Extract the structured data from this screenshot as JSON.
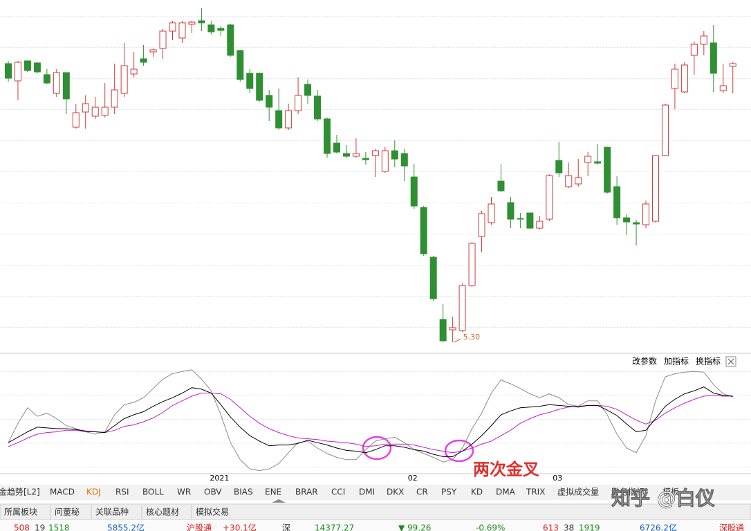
{
  "chart_data": [
    {
      "type": "candlestick",
      "open": [
        7.315,
        7.19,
        7.335,
        7.32,
        7.235,
        7.1,
        7.25,
        6.855,
        6.965,
        6.935,
        6.94,
        7.0,
        7.1,
        7.24,
        7.35,
        7.4,
        7.425,
        7.55,
        7.5,
        7.6,
        7.625,
        7.595,
        7.57,
        7.595,
        7.41,
        7.245,
        7.245,
        7.085,
        6.975,
        6.85,
        6.975,
        7.165,
        7.08,
        6.915,
        6.74,
        6.665,
        6.645,
        6.63,
        6.65,
        6.535,
        6.685,
        6.665,
        6.495,
        6.275,
        5.915,
        5.465,
        5.39,
        5.385,
        5.71,
        6.065,
        6.165,
        6.465,
        6.31,
        6.195,
        6.235,
        6.125,
        6.19,
        6.615,
        6.425,
        6.445,
        6.6,
        6.605,
        6.71,
        6.425,
        6.2,
        6.165,
        6.15,
        6.175,
        6.65,
        7.135,
        7.11,
        7.375,
        7.455,
        7.465,
        7.12,
        7.295
      ],
      "high": [
        7.335,
        7.335,
        7.335,
        7.325,
        7.275,
        7.275,
        7.25,
        7.025,
        7.085,
        7.075,
        7.175,
        7.315,
        7.465,
        7.4,
        7.45,
        7.425,
        7.565,
        7.625,
        7.625,
        7.625,
        7.715,
        7.625,
        7.585,
        7.6,
        7.415,
        7.275,
        7.25,
        7.125,
        7.135,
        7.025,
        7.215,
        7.2,
        7.125,
        6.925,
        6.8,
        6.725,
        6.775,
        6.675,
        6.7,
        6.715,
        6.76,
        6.7,
        6.59,
        6.285,
        5.925,
        5.575,
        5.485,
        5.725,
        6.025,
        6.25,
        6.35,
        6.59,
        6.35,
        6.235,
        6.235,
        6.215,
        6.515,
        6.75,
        6.6,
        6.625,
        6.675,
        6.735,
        6.715,
        6.5,
        6.225,
        6.185,
        6.325,
        6.655,
        7.025,
        7.315,
        7.325,
        7.475,
        7.55,
        7.595,
        7.315,
        7.325
      ],
      "low": [
        7.185,
        7.05,
        7.255,
        7.245,
        7.165,
        7.075,
        6.95,
        6.845,
        6.845,
        6.915,
        6.925,
        6.95,
        7.075,
        7.215,
        7.3,
        7.365,
        7.35,
        7.485,
        7.465,
        7.535,
        7.55,
        7.525,
        7.515,
        7.365,
        7.185,
        7.1,
        7.04,
        6.9,
        6.835,
        6.835,
        6.95,
        7.025,
        6.9,
        6.635,
        6.665,
        6.635,
        6.635,
        6.585,
        6.495,
        6.525,
        6.565,
        6.465,
        6.265,
        5.925,
        5.6,
        5.305,
        5.3,
        5.375,
        5.7,
        5.95,
        6.15,
        6.385,
        6.125,
        6.125,
        6.115,
        6.115,
        6.175,
        6.495,
        6.415,
        6.425,
        6.5,
        6.585,
        6.375,
        6.15,
        6.075,
        6.0,
        6.125,
        6.165,
        6.645,
        6.985,
        7.1,
        7.235,
        7.375,
        7.11,
        7.1,
        7.1
      ],
      "close": [
        7.21,
        7.325,
        7.265,
        7.255,
        7.175,
        7.25,
        7.06,
        6.96,
        7.025,
        7.0,
        7.0,
        7.125,
        7.3,
        7.275,
        7.325,
        7.415,
        7.55,
        7.61,
        7.61,
        7.615,
        7.61,
        7.545,
        7.555,
        7.375,
        7.2,
        7.135,
        7.05,
        7.0,
        6.85,
        6.975,
        7.085,
        7.085,
        6.915,
        6.665,
        6.675,
        6.645,
        6.665,
        6.62,
        6.685,
        6.685,
        6.625,
        6.575,
        6.285,
        5.94,
        5.615,
        5.31,
        5.405,
        5.71,
        6.015,
        6.23,
        6.3,
        6.395,
        6.19,
        6.19,
        6.125,
        6.175,
        6.505,
        6.525,
        6.505,
        6.49,
        6.645,
        6.595,
        6.385,
        6.2,
        6.17,
        6.155,
        6.3,
        6.65,
        7.015,
        7.275,
        7.305,
        7.455,
        7.515,
        7.245,
        7.155,
        7.315
      ],
      "ylim": [
        5.225,
        7.775
      ],
      "up_color": "#d03a3a",
      "down_color": "#2f8f33",
      "annotation": "5.30"
    },
    {
      "type": "line",
      "categories": [
        null,
        null,
        null,
        null,
        null,
        null,
        null,
        null,
        null,
        null,
        null,
        null,
        null,
        null,
        null,
        null,
        null,
        null,
        null,
        null,
        null,
        null,
        "2021",
        null,
        null,
        null,
        null,
        null,
        null,
        null,
        null,
        null,
        null,
        null,
        null,
        null,
        null,
        null,
        null,
        null,
        null,
        null,
        "02",
        null,
        null,
        null,
        null,
        null,
        null,
        null,
        null,
        null,
        null,
        null,
        null,
        null,
        null,
        "03",
        null,
        null,
        null,
        null,
        null,
        null,
        null,
        null,
        null,
        null,
        null,
        null,
        null,
        null,
        null,
        null,
        null,
        null
      ],
      "series": [
        {
          "color": "#000000",
          "values": [
            20,
            27,
            34,
            40,
            39,
            38,
            38,
            37,
            35,
            34,
            33,
            42,
            51,
            56,
            60,
            67,
            73,
            78,
            84,
            91,
            89,
            84,
            69,
            53,
            40,
            29,
            22,
            16,
            17,
            17,
            19,
            23,
            20,
            17,
            13,
            10,
            9,
            7,
            11,
            16,
            16,
            14,
            11,
            9,
            5,
            2,
            2,
            9,
            18,
            29,
            42,
            56,
            61,
            65,
            66,
            67,
            69,
            68,
            67,
            66,
            68,
            68,
            62,
            55,
            44,
            34,
            36,
            51,
            67,
            76,
            83,
            87,
            92,
            84,
            81,
            80
          ]
        },
        {
          "color": "#c21ec8",
          "values": [
            15,
            20,
            26,
            31,
            33,
            34,
            36,
            36,
            34,
            34,
            33,
            36,
            41,
            43,
            47,
            52,
            59,
            68,
            74,
            80,
            84,
            84,
            83,
            76,
            65,
            54,
            45,
            38,
            33,
            29,
            26,
            25,
            24,
            22,
            21,
            20,
            18,
            15,
            16,
            18,
            18,
            18,
            17,
            14,
            11,
            9,
            7,
            9,
            13,
            18,
            22,
            29,
            36,
            45,
            51,
            56,
            59,
            63,
            66,
            67,
            68,
            68,
            67,
            63,
            56,
            49,
            44,
            49,
            58,
            65,
            71,
            76,
            80,
            81,
            80,
            80
          ]
        },
        {
          "color": "#8a8a8a",
          "values": [
            20,
            45,
            65,
            54,
            58,
            51,
            42,
            38,
            34,
            31,
            34,
            56,
            69,
            72,
            78,
            90,
            102,
            109,
            112,
            114,
            102,
            87,
            56,
            20,
            -2,
            -14,
            -16,
            -14,
            -7,
            7,
            20,
            22,
            13,
            6,
            1,
            -2,
            -2,
            11,
            22,
            25,
            27,
            20,
            11,
            6,
            1,
            -5,
            -2,
            13,
            38,
            58,
            84,
            101,
            96,
            90,
            83,
            78,
            83,
            78,
            69,
            67,
            74,
            74,
            56,
            31,
            13,
            7,
            29,
            74,
            105,
            109,
            111,
            112,
            111,
            95,
            83,
            79
          ]
        }
      ],
      "ylim": [
        -20,
        130
      ],
      "annotation": "两次金叉"
    }
  ],
  "ui": {
    "panel_buttons": [
      "改参数",
      "加指标",
      "换指标"
    ],
    "indicator_tabs": [
      "金趋势[L2]",
      "MACD",
      "KDJ",
      "RSI",
      "BOLL",
      "WR",
      "OBV",
      "BIAS",
      "ENE",
      "BRAR",
      "CCI",
      "DMI",
      "DKX",
      "CR",
      "PSY",
      "KD",
      "DMA",
      "TRIX",
      "虚拟成交量",
      "财务指标",
      "模板"
    ],
    "bottom_tabs": [
      "所属板块",
      "问董秘",
      "关联品种",
      "核心题材",
      "模拟交易"
    ],
    "status": [
      "508",
      "19",
      "1518",
      "5855.2亿",
      "沪股通",
      "+30.1亿",
      "深",
      "14377.27",
      "▼ 99.26",
      "-0.69%",
      "613",
      "38",
      "1919",
      "6726.2亿",
      "深股通"
    ],
    "watermark": "知乎 @白仪"
  }
}
